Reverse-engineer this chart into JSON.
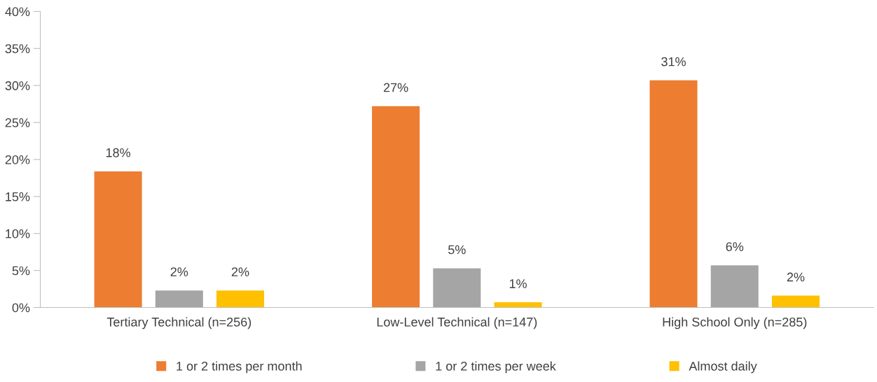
{
  "chart_data": {
    "type": "bar",
    "categories": [
      "Tertiary Technical (n=256)",
      "Low-Level Technical (n=147)",
      "High School Only (n=285)"
    ],
    "series": [
      {
        "name": "1 or 2 times per month",
        "color": "#ed7d31",
        "values": [
          18.4,
          27.2,
          30.7
        ],
        "value_labels": [
          "18%",
          "27%",
          "31%"
        ]
      },
      {
        "name": "1 or 2 times per week",
        "color": "#a5a5a5",
        "values": [
          2.3,
          5.3,
          5.7
        ],
        "value_labels": [
          "2%",
          "5%",
          "6%"
        ]
      },
      {
        "name": "Almost daily",
        "color": "#ffc000",
        "values": [
          2.3,
          0.7,
          1.6
        ],
        "value_labels": [
          "2%",
          "1%",
          "2%"
        ]
      }
    ],
    "ylim": [
      0,
      40
    ],
    "yticks": [
      {
        "value": 0,
        "label": "0%"
      },
      {
        "value": 5,
        "label": "5%"
      },
      {
        "value": 10,
        "label": "10%"
      },
      {
        "value": 15,
        "label": "15%"
      },
      {
        "value": 20,
        "label": "20%"
      },
      {
        "value": 25,
        "label": "25%"
      },
      {
        "value": 30,
        "label": "30%"
      },
      {
        "value": 35,
        "label": "35%"
      },
      {
        "value": 40,
        "label": "40%"
      }
    ],
    "grid": false,
    "legend": "bottom"
  }
}
